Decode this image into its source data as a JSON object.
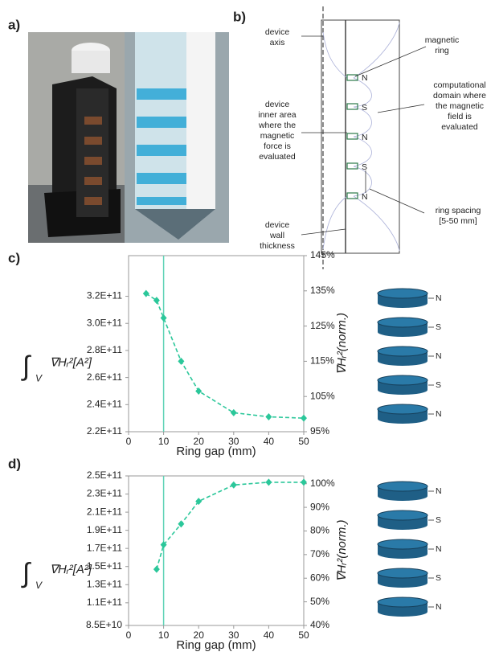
{
  "panel_labels": [
    "a)",
    "b)"
  ],
  "diagram": {
    "device_axis": [
      "device",
      "axis"
    ],
    "inner_area": [
      "device",
      "inner area",
      "where the",
      "magnetic",
      "force is",
      "evaluated"
    ],
    "wall": [
      "device",
      "wall",
      "thickness"
    ],
    "magnetic_ring": [
      "magnetic",
      "ring"
    ],
    "domain": [
      "computational",
      "domain where",
      "the magnetic",
      "field is",
      "evaluated"
    ],
    "spacing": [
      "ring spacing",
      "[5-50 mm]"
    ],
    "poles": [
      "N",
      "S",
      "N",
      "S",
      "N"
    ]
  },
  "chart_data": [
    {
      "type": "line",
      "label": "c)",
      "xlabel": "Ring gap (mm)",
      "ylabel": [
        "∫",
        "V",
        "∇Hᵣ²[A²]"
      ],
      "y2label": "∇Hᵣ²(norm.)",
      "x": [
        5,
        8,
        10,
        15,
        20,
        30,
        40,
        50
      ],
      "series": [
        {
          "color": "#2bc79a",
          "values": [
            322000000000.0,
            317000000000.0,
            304000000000.0,
            272000000000.0,
            250000000000.0,
            234000000000.0,
            231000000000.0,
            230000000000.0
          ]
        }
      ],
      "vline": 10,
      "vline_color": "#5ed3b6",
      "xlim": [
        0,
        50
      ],
      "xticks": [
        0,
        10,
        20,
        30,
        40,
        50
      ],
      "ylim": [
        220000000000.0,
        350000000000.0
      ],
      "yticks": [
        {
          "value": 220000000000.0,
          "label": "2.2E+11"
        },
        {
          "value": 240000000000.0,
          "label": "2.4E+11"
        },
        {
          "value": 260000000000.0,
          "label": "2.6E+11"
        },
        {
          "value": 280000000000.0,
          "label": "2.8E+11"
        },
        {
          "value": 300000000000.0,
          "label": "3.0E+11"
        },
        {
          "value": 320000000000.0,
          "label": "3.2E+11"
        }
      ],
      "y2lim": [
        95,
        145
      ],
      "y2ticks": [
        {
          "value": 95,
          "label": "95%"
        },
        {
          "value": 105,
          "label": "105%"
        },
        {
          "value": 115,
          "label": "115%"
        },
        {
          "value": 125,
          "label": "125%"
        },
        {
          "value": 135,
          "label": "135%"
        },
        {
          "value": 145,
          "label": "145%"
        }
      ],
      "poles": [
        "N",
        "S",
        "N",
        "S",
        "N"
      ]
    },
    {
      "type": "line",
      "label": "d)",
      "xlabel": "Ring gap (mm)",
      "ylabel": [
        "∫",
        "V",
        "∇Hᵣ²[A²]"
      ],
      "y2label": "∇Hᵣ²(norm.)",
      "x": [
        8,
        10,
        15,
        20,
        30,
        40,
        50
      ],
      "series": [
        {
          "color": "#2bc79a",
          "values": [
            147000000000.0,
            174000000000.0,
            197000000000.0,
            222000000000.0,
            240000000000.0,
            243000000000.0,
            243000000000.0
          ]
        }
      ],
      "vline": 10,
      "vline_color": "#5ed3b6",
      "xlim": [
        0,
        50
      ],
      "xticks": [
        0,
        10,
        20,
        30,
        40,
        50
      ],
      "ylim": [
        85000000000.0,
        250000000000.0
      ],
      "yticks": [
        {
          "value": 85000000000.0,
          "label": "8.5E+10"
        },
        {
          "value": 110000000000.0,
          "label": "1.1E+11"
        },
        {
          "value": 130000000000.0,
          "label": "1.3E+11"
        },
        {
          "value": 150000000000.0,
          "label": "1.5E+11"
        },
        {
          "value": 170000000000.0,
          "label": "1.7E+11"
        },
        {
          "value": 190000000000.0,
          "label": "1.9E+11"
        },
        {
          "value": 210000000000.0,
          "label": "2.1E+11"
        },
        {
          "value": 230000000000.0,
          "label": "2.3E+11"
        },
        {
          "value": 250000000000.0,
          "label": "2.5E+11"
        }
      ],
      "y2lim": [
        40,
        103.3
      ],
      "y2ticks": [
        {
          "value": 40,
          "label": "40%"
        },
        {
          "value": 50,
          "label": "50%"
        },
        {
          "value": 60,
          "label": "60%"
        },
        {
          "value": 70,
          "label": "70%"
        },
        {
          "value": 80,
          "label": "80%"
        },
        {
          "value": 90,
          "label": "90%"
        },
        {
          "value": 100,
          "label": "100%"
        }
      ],
      "poles": [
        "N",
        "S",
        "N",
        "S",
        "N"
      ]
    }
  ]
}
